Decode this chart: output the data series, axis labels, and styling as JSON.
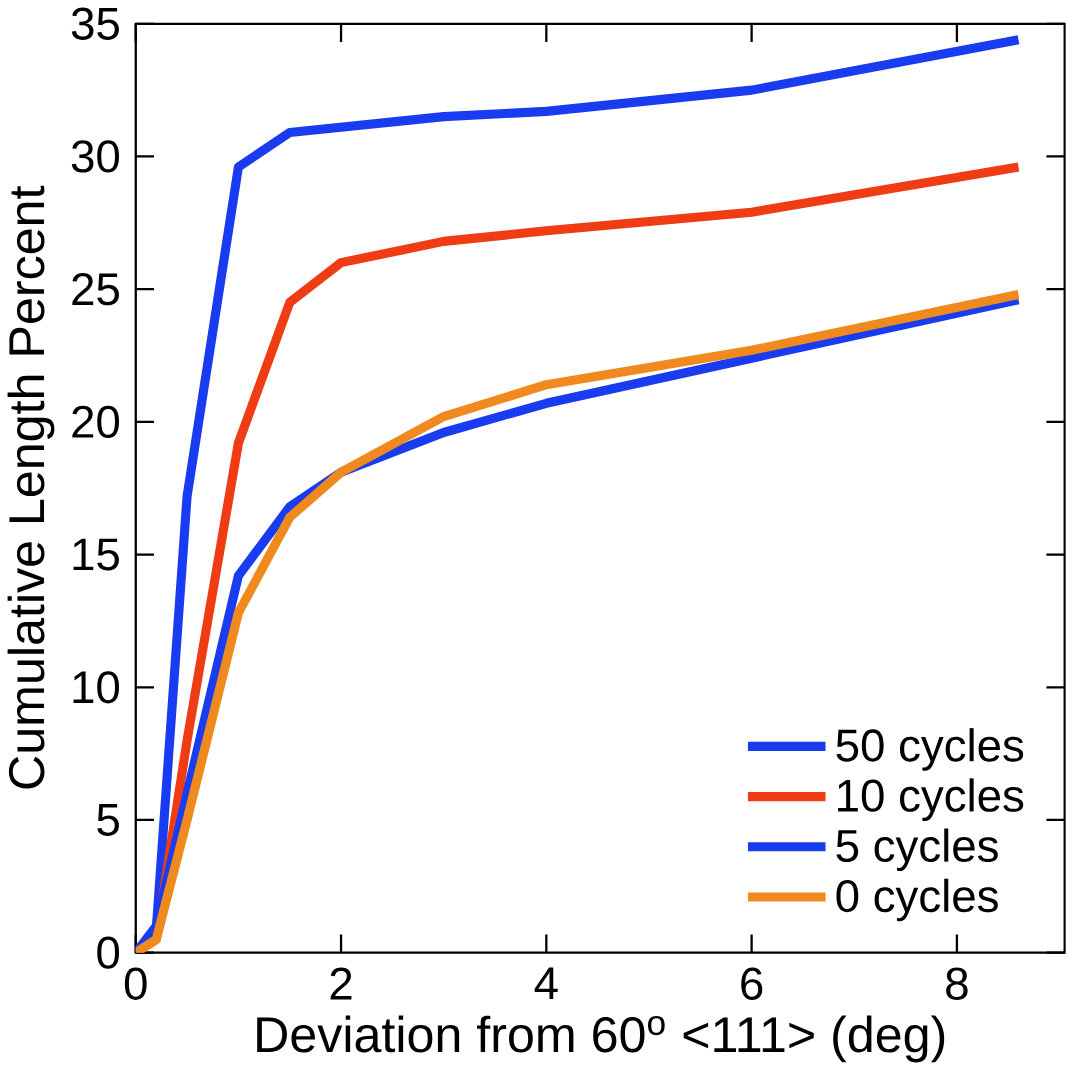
{
  "chart_data": {
    "type": "line",
    "xlabel": "Deviation from 60$^{o}$ <111> (deg)",
    "ylabel": "Cumulative Length Percent",
    "xlim": [
      0,
      9.05
    ],
    "ylim": [
      0,
      35
    ],
    "xticks": [
      0,
      2,
      4,
      6,
      8
    ],
    "yticks": [
      0,
      5,
      10,
      15,
      20,
      25,
      30,
      35
    ],
    "grid": false,
    "legend": "bottom right",
    "line_style": "solid",
    "marker": "none",
    "series": [
      {
        "name": "50 cycles",
        "color": "#1a3cf0",
        "x": [
          0,
          0.2,
          0.5,
          1,
          1.5,
          2,
          3,
          4,
          6,
          8.6
        ],
        "values": [
          0,
          0.9,
          17.2,
          29.6,
          30.9,
          31.1,
          31.5,
          31.7,
          32.5,
          34.4
        ]
      },
      {
        "name": "10 cycles",
        "color": "#f03c14",
        "x": [
          0,
          0.2,
          0.5,
          1,
          1.5,
          2,
          3,
          4,
          6,
          8.6
        ],
        "values": [
          0,
          0.5,
          8,
          19.2,
          24.5,
          26,
          26.8,
          27.2,
          27.9,
          29.6
        ]
      },
      {
        "name": "5 cycles",
        "color": "#1a3cf0",
        "x": [
          0,
          0.2,
          0.5,
          1,
          1.5,
          2,
          3,
          4,
          6,
          8.6
        ],
        "values": [
          0,
          1,
          6,
          14.2,
          16.8,
          18.1,
          19.6,
          20.7,
          22.4,
          24.6
        ]
      },
      {
        "name": "0 cycles",
        "color": "#f08a1e",
        "x": [
          0,
          0.2,
          0.5,
          1,
          1.5,
          2,
          3,
          4,
          6,
          8.6
        ],
        "values": [
          0,
          0.5,
          5,
          12.8,
          16.4,
          18.1,
          20.2,
          21.4,
          22.7,
          24.8
        ]
      }
    ]
  }
}
